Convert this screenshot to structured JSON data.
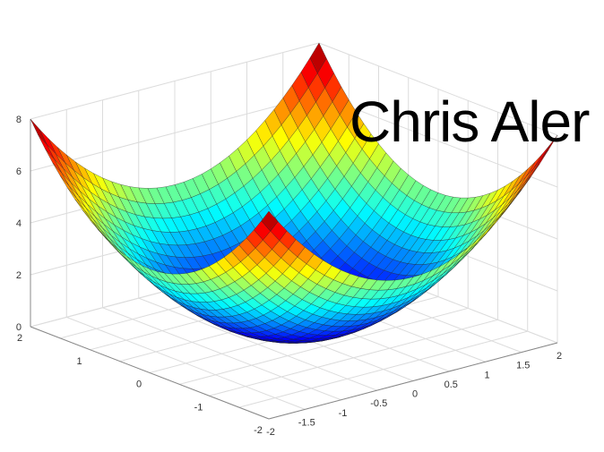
{
  "overlay_text": "Chris Aler",
  "chart_data": {
    "type": "surface",
    "function": "z = x^2 + y^2",
    "colormap": "jet",
    "x": [
      -2,
      -1.5,
      -1,
      -0.5,
      0,
      0.5,
      1,
      1.5,
      2
    ],
    "y": [
      -2,
      -1.5,
      -1,
      -0.5,
      0,
      0.5,
      1,
      1.5,
      2
    ],
    "grid_resolution": 33,
    "xlim": [
      -2,
      2
    ],
    "ylim": [
      -2,
      2
    ],
    "zlim": [
      0,
      8
    ],
    "x_ticks": [
      "-2",
      "-1.5",
      "-1",
      "-0.5",
      "0",
      "0.5",
      "1",
      "1.5",
      "2"
    ],
    "y_ticks": [
      "2",
      "1",
      "0",
      "-1",
      "-2"
    ],
    "z_ticks": [
      "0",
      "2",
      "4",
      "6",
      "8"
    ],
    "grid": true
  }
}
